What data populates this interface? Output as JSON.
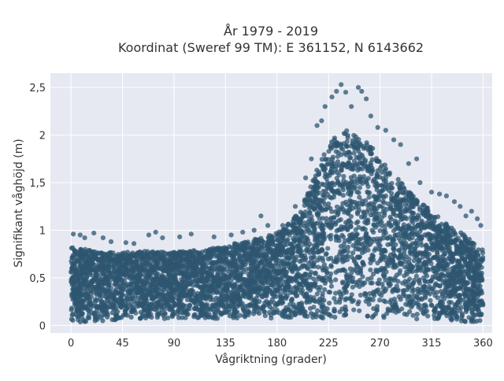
{
  "chart_data": {
    "type": "scatter",
    "title_line1": "År 1979 - 2019",
    "title_line2": "Koordinat (Sweref 99 TM): E 361152, N 6143662",
    "xlabel": "Vågriktning (grader)",
    "ylabel": "Signifikant våghöjd (m)",
    "xlim": [
      -18,
      368
    ],
    "ylim": [
      -0.08,
      2.65
    ],
    "x_ticks": [
      0,
      45,
      90,
      135,
      180,
      225,
      270,
      315,
      360
    ],
    "x_tick_labels": [
      "0",
      "45",
      "90",
      "135",
      "180",
      "225",
      "270",
      "315",
      "360"
    ],
    "y_ticks": [
      0,
      0.5,
      1,
      1.5,
      2,
      2.5
    ],
    "y_tick_labels": [
      "0",
      "0,5",
      "1",
      "1,5",
      "2",
      "2,5"
    ],
    "grid": true,
    "colors": {
      "marker": "#2e5670",
      "plot_background": "#e6e9f2",
      "grid": "#ffffff",
      "page_background": "#ffffff"
    },
    "envelope": {
      "x": [
        0,
        20,
        45,
        70,
        90,
        120,
        150,
        170,
        185,
        200,
        210,
        220,
        230,
        240,
        250,
        260,
        270,
        285,
        300,
        315,
        330,
        345,
        355,
        360
      ],
      "min": [
        0.02,
        0.04,
        0.06,
        0.06,
        0.07,
        0.07,
        0.07,
        0.07,
        0.07,
        0.07,
        0.07,
        0.07,
        0.08,
        0.08,
        0.08,
        0.08,
        0.08,
        0.07,
        0.07,
        0.05,
        0.04,
        0.03,
        0.03,
        0.05
      ],
      "max": [
        0.83,
        0.78,
        0.77,
        0.78,
        0.77,
        0.8,
        0.88,
        0.93,
        1.0,
        1.2,
        1.5,
        1.78,
        1.98,
        2.05,
        2.0,
        1.92,
        1.75,
        1.55,
        1.35,
        1.2,
        1.05,
        0.95,
        0.82,
        0.8
      ]
    },
    "outliers": [
      {
        "x": 2,
        "y": 0.96
      },
      {
        "x": 8,
        "y": 0.95
      },
      {
        "x": 12,
        "y": 0.92
      },
      {
        "x": 20,
        "y": 0.97
      },
      {
        "x": 28,
        "y": 0.92
      },
      {
        "x": 35,
        "y": 0.88
      },
      {
        "x": 48,
        "y": 0.87
      },
      {
        "x": 55,
        "y": 0.86
      },
      {
        "x": 68,
        "y": 0.95
      },
      {
        "x": 74,
        "y": 0.98
      },
      {
        "x": 80,
        "y": 0.92
      },
      {
        "x": 95,
        "y": 0.93
      },
      {
        "x": 105,
        "y": 0.96
      },
      {
        "x": 125,
        "y": 0.93
      },
      {
        "x": 140,
        "y": 0.95
      },
      {
        "x": 150,
        "y": 0.98
      },
      {
        "x": 160,
        "y": 1.0
      },
      {
        "x": 166,
        "y": 1.15
      },
      {
        "x": 172,
        "y": 1.05
      },
      {
        "x": 185,
        "y": 1.05
      },
      {
        "x": 196,
        "y": 1.25
      },
      {
        "x": 205,
        "y": 1.55
      },
      {
        "x": 210,
        "y": 1.75
      },
      {
        "x": 215,
        "y": 2.1
      },
      {
        "x": 219,
        "y": 2.15
      },
      {
        "x": 222,
        "y": 2.3
      },
      {
        "x": 228,
        "y": 2.4
      },
      {
        "x": 232,
        "y": 2.46
      },
      {
        "x": 236,
        "y": 2.53
      },
      {
        "x": 240,
        "y": 2.45
      },
      {
        "x": 245,
        "y": 2.3
      },
      {
        "x": 251,
        "y": 2.5
      },
      {
        "x": 254,
        "y": 2.46
      },
      {
        "x": 258,
        "y": 2.38
      },
      {
        "x": 262,
        "y": 2.2
      },
      {
        "x": 268,
        "y": 2.08
      },
      {
        "x": 275,
        "y": 2.05
      },
      {
        "x": 282,
        "y": 1.95
      },
      {
        "x": 288,
        "y": 1.9
      },
      {
        "x": 295,
        "y": 1.7
      },
      {
        "x": 302,
        "y": 1.75
      },
      {
        "x": 305,
        "y": 1.5
      },
      {
        "x": 315,
        "y": 1.4
      },
      {
        "x": 322,
        "y": 1.38
      },
      {
        "x": 328,
        "y": 1.36
      },
      {
        "x": 335,
        "y": 1.3
      },
      {
        "x": 340,
        "y": 1.25
      },
      {
        "x": 345,
        "y": 1.15
      },
      {
        "x": 350,
        "y": 1.2
      },
      {
        "x": 355,
        "y": 1.12
      },
      {
        "x": 358,
        "y": 1.05
      }
    ]
  }
}
